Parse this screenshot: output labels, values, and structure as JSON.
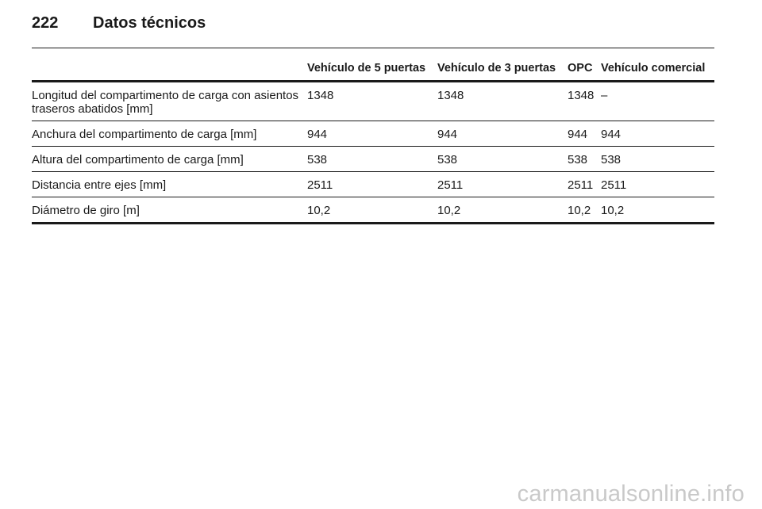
{
  "header": {
    "page_number": "222",
    "title": "Datos técnicos"
  },
  "table": {
    "columns": [
      "",
      "Vehículo de 5 puertas",
      "Vehículo de 3 puertas",
      "OPC",
      "Vehículo comercial"
    ],
    "rows": [
      [
        "Longitud del compartimento de carga con asientos traseros abatidos [mm]",
        "1348",
        "1348",
        "1348",
        "–"
      ],
      [
        "Anchura del compartimento de carga [mm]",
        "944",
        "944",
        "944",
        "944"
      ],
      [
        "Altura del compartimento de carga [mm]",
        "538",
        "538",
        "538",
        "538"
      ],
      [
        "Distancia entre ejes [mm]",
        "2511",
        "2511",
        "2511",
        "2511"
      ],
      [
        "Diámetro de giro [m]",
        "10,2",
        "10,2",
        "10,2",
        "10,2"
      ]
    ]
  },
  "watermark": {
    "text": "carmanualsonline.info"
  }
}
